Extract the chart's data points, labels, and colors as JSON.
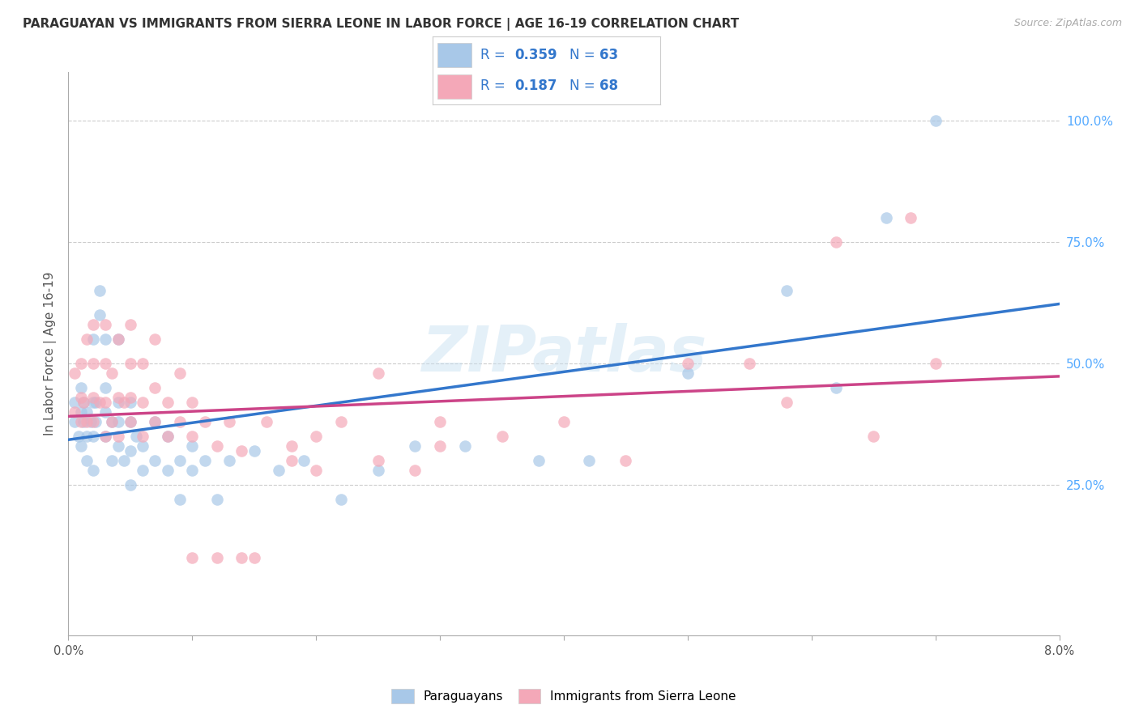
{
  "title": "PARAGUAYAN VS IMMIGRANTS FROM SIERRA LEONE IN LABOR FORCE | AGE 16-19 CORRELATION CHART",
  "source_text": "Source: ZipAtlas.com",
  "ylabel": "In Labor Force | Age 16-19",
  "right_ytick_labels": [
    "25.0%",
    "50.0%",
    "75.0%",
    "100.0%"
  ],
  "right_ytick_values": [
    0.25,
    0.5,
    0.75,
    1.0
  ],
  "xtick_values": [
    0.0,
    0.01,
    0.02,
    0.03,
    0.04,
    0.05,
    0.06,
    0.07,
    0.08
  ],
  "blue_R": "0.359",
  "blue_N": "63",
  "pink_R": "0.187",
  "pink_N": "68",
  "blue_scatter_color": "#a8c8e8",
  "pink_scatter_color": "#f4a8b8",
  "blue_line_color": "#3377cc",
  "pink_line_color": "#cc4488",
  "legend_text_color": "#3377cc",
  "legend_label_blue": "Paraguayans",
  "legend_label_pink": "Immigrants from Sierra Leone",
  "watermark": "ZIPatlas",
  "xlim": [
    0.0,
    0.08
  ],
  "ylim": [
    -0.06,
    1.1
  ],
  "blue_scatter_x": [
    0.0005,
    0.0005,
    0.0008,
    0.001,
    0.001,
    0.001,
    0.0012,
    0.0012,
    0.0015,
    0.0015,
    0.0015,
    0.0018,
    0.002,
    0.002,
    0.002,
    0.002,
    0.0022,
    0.0022,
    0.0025,
    0.0025,
    0.003,
    0.003,
    0.003,
    0.003,
    0.0035,
    0.0035,
    0.004,
    0.004,
    0.004,
    0.004,
    0.0045,
    0.005,
    0.005,
    0.005,
    0.005,
    0.0055,
    0.006,
    0.006,
    0.007,
    0.007,
    0.008,
    0.008,
    0.009,
    0.009,
    0.01,
    0.01,
    0.011,
    0.012,
    0.013,
    0.015,
    0.017,
    0.019,
    0.022,
    0.025,
    0.028,
    0.032,
    0.038,
    0.042,
    0.05,
    0.058,
    0.062,
    0.066,
    0.07
  ],
  "blue_scatter_y": [
    0.38,
    0.42,
    0.35,
    0.33,
    0.4,
    0.45,
    0.38,
    0.42,
    0.3,
    0.35,
    0.4,
    0.38,
    0.28,
    0.35,
    0.42,
    0.55,
    0.38,
    0.42,
    0.6,
    0.65,
    0.35,
    0.4,
    0.45,
    0.55,
    0.3,
    0.38,
    0.33,
    0.38,
    0.42,
    0.55,
    0.3,
    0.25,
    0.32,
    0.38,
    0.42,
    0.35,
    0.28,
    0.33,
    0.3,
    0.38,
    0.28,
    0.35,
    0.22,
    0.3,
    0.28,
    0.33,
    0.3,
    0.22,
    0.3,
    0.32,
    0.28,
    0.3,
    0.22,
    0.28,
    0.33,
    0.33,
    0.3,
    0.3,
    0.48,
    0.65,
    0.45,
    0.8,
    1.0
  ],
  "pink_scatter_x": [
    0.0005,
    0.0005,
    0.001,
    0.001,
    0.001,
    0.0012,
    0.0015,
    0.0015,
    0.002,
    0.002,
    0.002,
    0.002,
    0.0025,
    0.003,
    0.003,
    0.003,
    0.003,
    0.0035,
    0.0035,
    0.004,
    0.004,
    0.004,
    0.0045,
    0.005,
    0.005,
    0.005,
    0.005,
    0.006,
    0.006,
    0.006,
    0.007,
    0.007,
    0.007,
    0.008,
    0.008,
    0.009,
    0.009,
    0.01,
    0.01,
    0.011,
    0.012,
    0.013,
    0.014,
    0.016,
    0.018,
    0.02,
    0.022,
    0.025,
    0.028,
    0.03,
    0.035,
    0.04,
    0.045,
    0.05,
    0.055,
    0.058,
    0.062,
    0.065,
    0.068,
    0.07,
    0.01,
    0.012,
    0.015,
    0.018,
    0.02,
    0.025,
    0.03,
    0.014
  ],
  "pink_scatter_y": [
    0.4,
    0.48,
    0.38,
    0.43,
    0.5,
    0.42,
    0.38,
    0.55,
    0.38,
    0.43,
    0.5,
    0.58,
    0.42,
    0.35,
    0.42,
    0.5,
    0.58,
    0.38,
    0.48,
    0.35,
    0.43,
    0.55,
    0.42,
    0.38,
    0.43,
    0.5,
    0.58,
    0.35,
    0.42,
    0.5,
    0.38,
    0.45,
    0.55,
    0.35,
    0.42,
    0.38,
    0.48,
    0.35,
    0.42,
    0.38,
    0.33,
    0.38,
    0.32,
    0.38,
    0.3,
    0.28,
    0.38,
    0.48,
    0.28,
    0.38,
    0.35,
    0.38,
    0.3,
    0.5,
    0.5,
    0.42,
    0.75,
    0.35,
    0.8,
    0.5,
    0.1,
    0.1,
    0.1,
    0.33,
    0.35,
    0.3,
    0.33,
    0.1
  ]
}
